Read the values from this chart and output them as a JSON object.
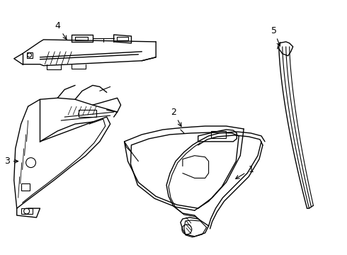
{
  "background_color": "#ffffff",
  "line_color": "#000000",
  "line_width": 0.8,
  "label_fontsize": 9,
  "fig_width": 4.9,
  "fig_height": 3.6,
  "dpi": 100
}
